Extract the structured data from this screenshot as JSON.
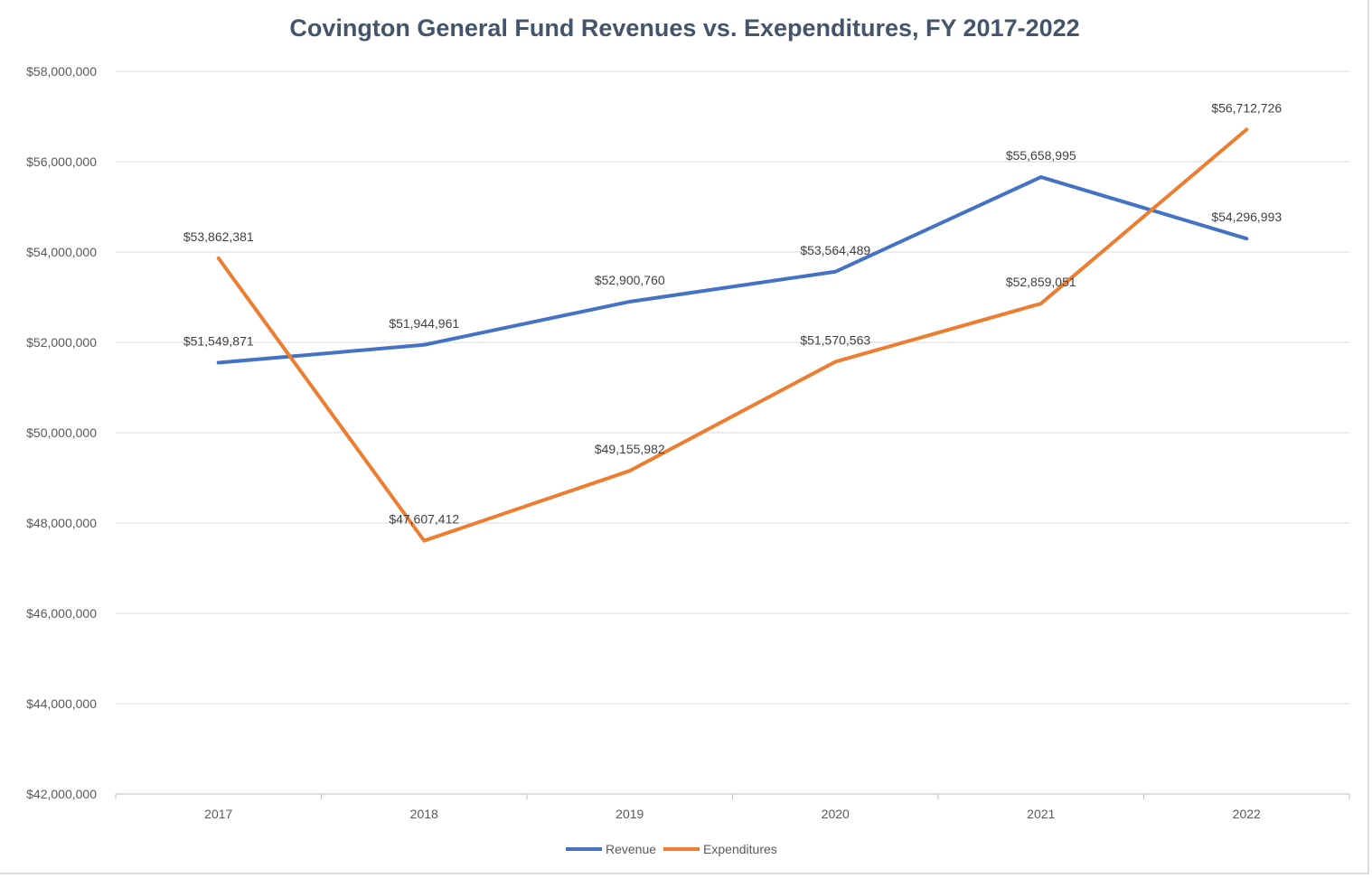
{
  "chart_data": {
    "type": "line",
    "title": "Covington General Fund Revenues vs. Exependitures, FY 2017-2022",
    "categories": [
      "2017",
      "2018",
      "2019",
      "2020",
      "2021",
      "2022"
    ],
    "series": [
      {
        "name": "Revenue",
        "color": "#4472c4",
        "values": [
          51549871,
          51944961,
          52900760,
          53564489,
          55658995,
          54296993
        ],
        "labels": [
          "$51,549,871",
          "$51,944,961",
          "$52,900,760",
          "$53,564,489",
          "$55,658,995",
          "$54,296,993"
        ]
      },
      {
        "name": "Expenditures",
        "color": "#ed7d31",
        "values": [
          53862381,
          47607412,
          49155982,
          51570563,
          52859051,
          56712726
        ],
        "labels": [
          "$53,862,381",
          "$47,607,412",
          "$49,155,982",
          "$51,570,563",
          "$52,859,051",
          "$56,712,726"
        ]
      }
    ],
    "ylim": [
      42000000,
      58000000
    ],
    "yticks": [
      "$42,000,000",
      "$44,000,000",
      "$46,000,000",
      "$48,000,000",
      "$50,000,000",
      "$52,000,000",
      "$54,000,000",
      "$56,000,000",
      "$58,000,000"
    ],
    "grid": true,
    "legend": "bottom"
  }
}
